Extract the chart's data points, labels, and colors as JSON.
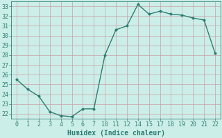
{
  "x_labels": [
    "0",
    "1",
    "2",
    "3",
    "4",
    "5",
    "6",
    "7",
    "10",
    "11",
    "12",
    "14",
    "15",
    "17",
    "18",
    "19",
    "20",
    "21",
    "22"
  ],
  "y": [
    25.5,
    24.5,
    23.8,
    22.2,
    21.8,
    21.7,
    22.5,
    22.5,
    28.0,
    30.6,
    31.0,
    33.2,
    32.2,
    32.5,
    32.2,
    32.1,
    31.8,
    31.6,
    28.2
  ],
  "line_color": "#2d7d72",
  "marker_color": "#2d7d72",
  "bg_color": "#cceee8",
  "grid_color": "#c8a0a8",
  "xlabel": "Humidex (Indice chaleur)",
  "ylim": [
    21.5,
    33.5
  ],
  "yticks": [
    22,
    23,
    24,
    25,
    26,
    27,
    28,
    29,
    30,
    31,
    32,
    33
  ],
  "xlabel_fontsize": 7,
  "tick_fontsize": 6,
  "line_width": 1.0,
  "marker_size": 2.5
}
